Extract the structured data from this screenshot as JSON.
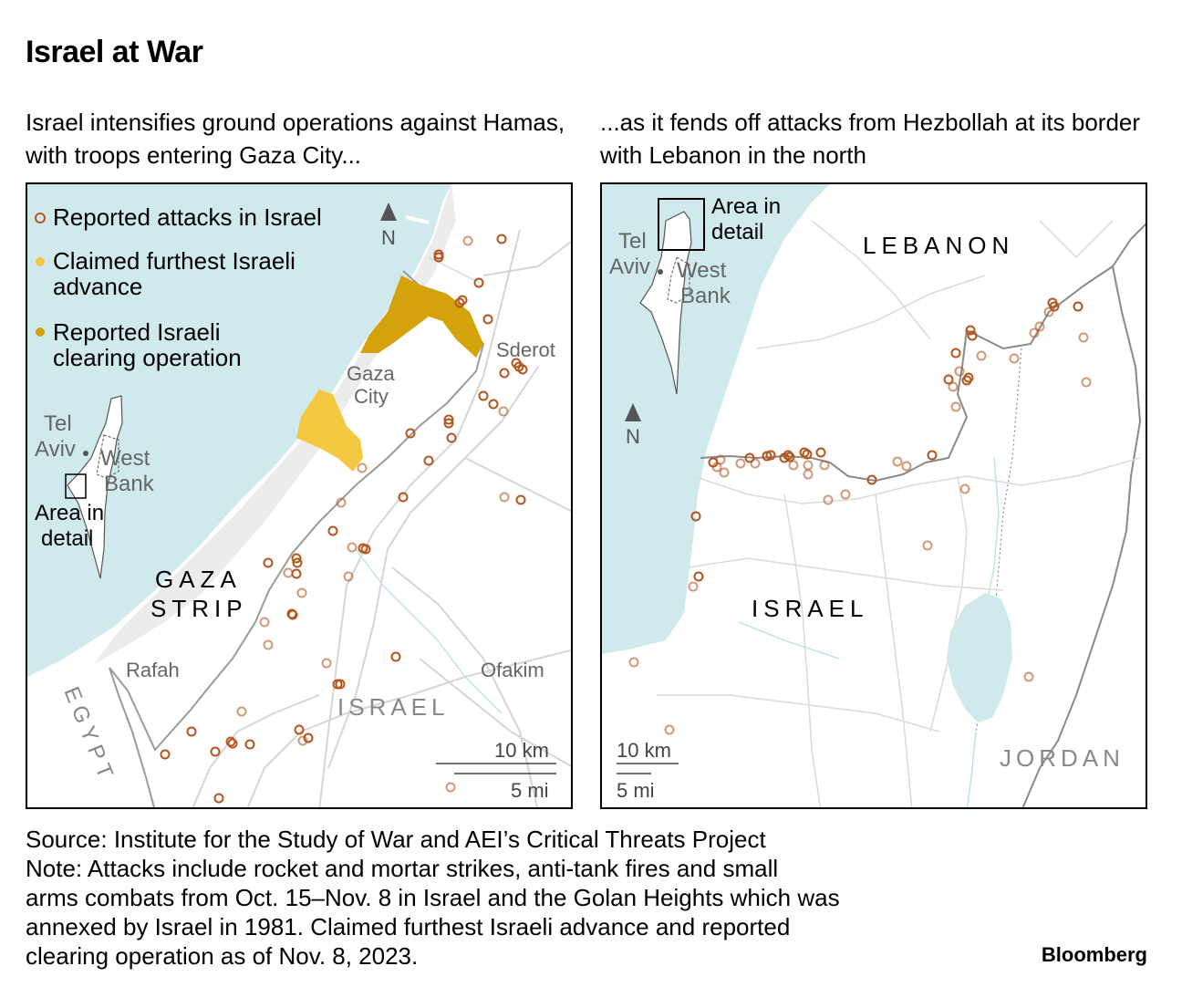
{
  "title": "Israel at War",
  "subtitle_left": "Israel intensifies ground operations against Hamas, with troops entering Gaza City...",
  "subtitle_right": "...as it fends off attacks from Hezbollah at its border with Lebanon in the north",
  "left_map": {
    "legend": {
      "attacks": "Reported attacks in Israel",
      "advance_1": "Claimed furthest Israeli",
      "advance_2": "advance",
      "clearing_1": "Reported Israeli",
      "clearing_2": "clearing operation"
    },
    "north_arrow": "N",
    "labels": {
      "sderot": "Sderot",
      "gaza_city_1": "Gaza",
      "gaza_city_2": "City",
      "gaza_strip_1": "GAZA",
      "gaza_strip_2": "STRIP",
      "rafah": "Rafah",
      "ofakim": "Ofakim",
      "israel": "ISRAEL",
      "egypt": "EGYPT",
      "tel_1": "Tel",
      "tel_2": "Aviv",
      "west_1": "West",
      "west_2": "Bank",
      "area_1": "Area in",
      "area_2": "detail"
    },
    "scale_km": "10 km",
    "scale_mi": "5 mi"
  },
  "right_map": {
    "north_arrow": "N",
    "labels": {
      "lebanon": "LEBANON",
      "israel": "ISRAEL",
      "jordan": "JORDAN",
      "tel_1": "Tel",
      "tel_2": "Aviv",
      "west_1": "West",
      "west_2": "Bank",
      "area_1": "Area in",
      "area_2": "detail"
    },
    "scale_km": "10 km",
    "scale_mi": "5 mi"
  },
  "footer": {
    "line1": "Source: Institute for the Study of War and AEI’s Critical Threats Project",
    "line2": "Note: Attacks include rocket and mortar strikes, anti-tank fires and small",
    "line3": "arms combats from Oct. 15–Nov. 8 in Israel and the Golan Heights which was",
    "line4": "annexed by Israel in 1981. Claimed furthest Israeli advance and reported",
    "line5": "clearing operation as of Nov. 8, 2023."
  },
  "brand": "Bloomberg",
  "colors": {
    "sea": "#cfe9ed",
    "attack": "#b5541c",
    "advance": "#f5c842",
    "clearing": "#d4a20a",
    "border": "#8a8a8a",
    "road": "#cfcfcf",
    "river": "#a9dbe3"
  }
}
